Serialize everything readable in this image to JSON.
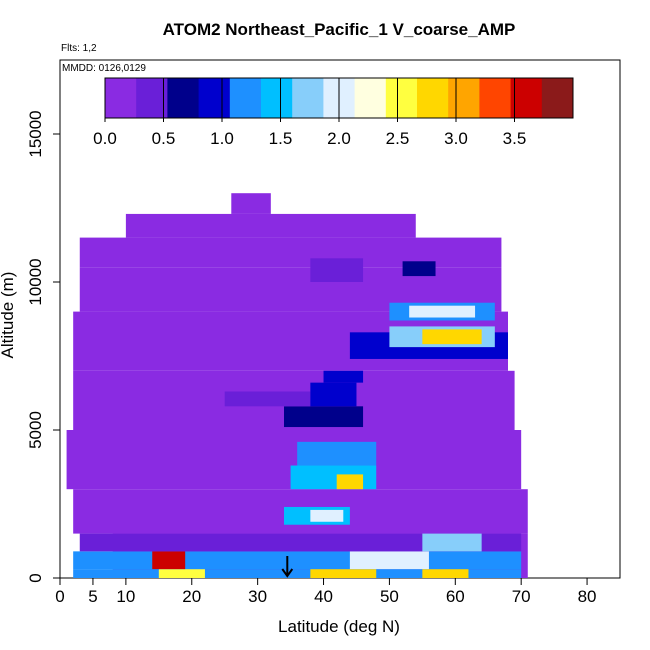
{
  "chart_data": {
    "type": "heatmap",
    "title": "ATOM2 Northeast_Pacific_1 V_coarse_AMP",
    "subtitle": "Flts: 1,2",
    "annotation": "MMDD: 0126,0129",
    "xlabel": "Latitude (deg N)",
    "ylabel": "Altitude (m)",
    "xlim": [
      0,
      85
    ],
    "ylim": [
      0,
      17500
    ],
    "x_ticks": [
      0,
      5,
      10,
      20,
      30,
      40,
      50,
      60,
      70,
      80
    ],
    "y_ticks": [
      0,
      5000,
      10000,
      15000
    ],
    "colorbar": {
      "range": [
        0,
        4
      ],
      "ticks": [
        0.0,
        0.5,
        1.0,
        1.5,
        2.0,
        2.5,
        3.0,
        3.5
      ],
      "tick_labels": [
        "0.0",
        "0.5",
        "1.0",
        "1.5",
        "2.0",
        "2.5",
        "3.0",
        "3.5"
      ],
      "colors": [
        "#8a2be2",
        "#6a1fd8",
        "#00008b",
        "#0000cd",
        "#1e90ff",
        "#00bfff",
        "#87cefa",
        "#e0f0ff",
        "#ffffe0",
        "#ffff40",
        "#ffd700",
        "#ffa500",
        "#ff4500",
        "#cc0000",
        "#8b1a1a"
      ]
    },
    "grid": false,
    "legend": "colorbar top",
    "marker": {
      "latitude": 34.5,
      "altitude": 0,
      "symbol": "arrow-down"
    },
    "cells": [
      {
        "lat": [
          2,
          70
        ],
        "alt": [
          0,
          300
        ],
        "value": 1.3
      },
      {
        "lat": [
          15,
          22
        ],
        "alt": [
          0,
          300
        ],
        "value": 2.4
      },
      {
        "lat": [
          38,
          48
        ],
        "alt": [
          0,
          300
        ],
        "value": 2.7
      },
      {
        "lat": [
          55,
          62
        ],
        "alt": [
          0,
          300
        ],
        "value": 2.8
      },
      {
        "lat": [
          2,
          70
        ],
        "alt": [
          300,
          900
        ],
        "value": 1.1
      },
      {
        "lat": [
          14,
          19
        ],
        "alt": [
          300,
          900
        ],
        "value": 3.6
      },
      {
        "lat": [
          44,
          56
        ],
        "alt": [
          300,
          900
        ],
        "value": 1.9
      },
      {
        "lat": [
          3,
          70
        ],
        "alt": [
          900,
          1500
        ],
        "value": 0.3
      },
      {
        "lat": [
          55,
          64
        ],
        "alt": [
          900,
          1500
        ],
        "value": 1.8
      },
      {
        "lat": [
          34,
          44
        ],
        "alt": [
          1800,
          2400
        ],
        "value": 1.5
      },
      {
        "lat": [
          38,
          43
        ],
        "alt": [
          1900,
          2300
        ],
        "value": 2.0
      },
      {
        "lat": [
          35,
          48
        ],
        "alt": [
          3000,
          3800
        ],
        "value": 1.5
      },
      {
        "lat": [
          42,
          46
        ],
        "alt": [
          3000,
          3500
        ],
        "value": 2.7
      },
      {
        "lat": [
          36,
          48
        ],
        "alt": [
          3800,
          4600
        ],
        "value": 1.2
      },
      {
        "lat": [
          34,
          46
        ],
        "alt": [
          5100,
          5800
        ],
        "value": 0.6
      },
      {
        "lat": [
          25,
          38
        ],
        "alt": [
          5800,
          6300
        ],
        "value": 0.5
      },
      {
        "lat": [
          38,
          45
        ],
        "alt": [
          5800,
          6600
        ],
        "value": 1.0
      },
      {
        "lat": [
          40,
          46
        ],
        "alt": [
          6600,
          7000
        ],
        "value": 0.8
      },
      {
        "lat": [
          44,
          68
        ],
        "alt": [
          7400,
          8300
        ],
        "value": 0.8
      },
      {
        "lat": [
          50,
          66
        ],
        "alt": [
          7800,
          8500
        ],
        "value": 1.6
      },
      {
        "lat": [
          55,
          64
        ],
        "alt": [
          7900,
          8400
        ],
        "value": 2.8
      },
      {
        "lat": [
          50,
          66
        ],
        "alt": [
          8700,
          9300
        ],
        "value": 1.3
      },
      {
        "lat": [
          53,
          63
        ],
        "alt": [
          8800,
          9200
        ],
        "value": 1.9
      },
      {
        "lat": [
          38,
          46
        ],
        "alt": [
          10000,
          10800
        ],
        "value": 0.5
      },
      {
        "lat": [
          52,
          57
        ],
        "alt": [
          10200,
          10700
        ],
        "value": 0.7
      }
    ],
    "coverage": [
      {
        "lat": [
          8,
          71
        ],
        "alt": [
          0,
          1500
        ]
      },
      {
        "lat": [
          2,
          71
        ],
        "alt": [
          1500,
          3000
        ]
      },
      {
        "lat": [
          1,
          70
        ],
        "alt": [
          3000,
          5000
        ]
      },
      {
        "lat": [
          2,
          69
        ],
        "alt": [
          5000,
          7000
        ]
      },
      {
        "lat": [
          2,
          68
        ],
        "alt": [
          7000,
          9000
        ]
      },
      {
        "lat": [
          3,
          67
        ],
        "alt": [
          9000,
          10500
        ]
      },
      {
        "lat": [
          3,
          67
        ],
        "alt": [
          10500,
          11500
        ]
      },
      {
        "lat": [
          10,
          54
        ],
        "alt": [
          11500,
          12300
        ]
      },
      {
        "lat": [
          26,
          32
        ],
        "alt": [
          12300,
          13000
        ]
      }
    ]
  }
}
